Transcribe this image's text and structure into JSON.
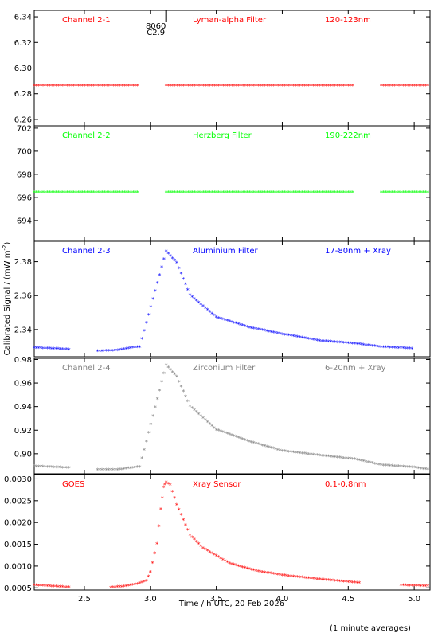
{
  "chart_data": [
    {
      "type": "scatter",
      "id": "ch21",
      "color": "#ff0000",
      "labels": [
        "Channel 2-1",
        "Lyman-alpha Filter",
        "120-123nm"
      ],
      "ylim": [
        6.255,
        6.345
      ],
      "yticks": [
        "6.26",
        "6.28",
        "6.30",
        "6.32",
        "6.34"
      ],
      "ytick_values": [
        6.26,
        6.28,
        6.3,
        6.32,
        6.34
      ],
      "series": [
        {
          "values": [
            [
              2.12,
              6.286
            ],
            [
              2.92,
              6.286
            ],
            [
              3.12,
              6.286
            ],
            [
              4.55,
              6.286
            ],
            [
              4.75,
              6.286
            ],
            [
              5.12,
              6.286
            ]
          ]
        }
      ],
      "annotations": [
        "8060",
        "C2.9"
      ],
      "event_marker_x": 3.12
    },
    {
      "type": "scatter",
      "id": "ch22",
      "color": "#00ff00",
      "labels": [
        "Channel 2-2",
        "Herzberg Filter",
        "190-222nm"
      ],
      "ylim": [
        692.2,
        702.2
      ],
      "yticks": [
        "694",
        "696",
        "698",
        "700",
        "702"
      ],
      "ytick_values": [
        694,
        696,
        698,
        700,
        702
      ],
      "series": [
        {
          "values": [
            [
              2.12,
              696.4
            ],
            [
              2.92,
              696.4
            ],
            [
              3.12,
              696.4
            ],
            [
              4.55,
              696.4
            ],
            [
              4.75,
              696.4
            ],
            [
              5.12,
              696.4
            ]
          ]
        }
      ]
    },
    {
      "type": "scatter",
      "id": "ch23",
      "color": "#0000ff",
      "labels": [
        "Channel 2-3",
        "Aluminium Filter",
        "17-80nm + Xray"
      ],
      "ylim": [
        2.324,
        2.392
      ],
      "yticks": [
        "2.34",
        "2.36",
        "2.38"
      ],
      "ytick_values": [
        2.34,
        2.36,
        2.38
      ],
      "series": [
        {
          "values": [
            [
              2.12,
              2.329
            ],
            [
              2.4,
              2.328
            ],
            [
              2.6,
              2.327
            ],
            [
              2.75,
              2.3275
            ],
            [
              2.85,
              2.329
            ],
            [
              2.92,
              2.3295
            ],
            [
              3.12,
              2.386
            ],
            [
              3.2,
              2.379
            ],
            [
              3.3,
              2.36
            ],
            [
              3.5,
              2.347
            ],
            [
              3.75,
              2.341
            ],
            [
              4.0,
              2.337
            ],
            [
              4.3,
              2.333
            ],
            [
              4.55,
              2.3315
            ],
            [
              4.75,
              2.3295
            ],
            [
              5.0,
              2.3285
            ],
            [
              5.12,
              2.328
            ]
          ]
        }
      ]
    },
    {
      "type": "scatter",
      "id": "ch24",
      "color": "#808080",
      "labels": [
        "Channel 2-4",
        "Zirconium Filter",
        "6-20nm + Xray"
      ],
      "ylim": [
        0.883,
        0.981
      ],
      "yticks": [
        "0.90",
        "0.92",
        "0.94",
        "0.96",
        "0.98"
      ],
      "ytick_values": [
        0.9,
        0.92,
        0.94,
        0.96,
        0.98
      ],
      "series": [
        {
          "values": [
            [
              2.12,
              0.889
            ],
            [
              2.4,
              0.8875
            ],
            [
              2.6,
              0.8862
            ],
            [
              2.75,
              0.886
            ],
            [
              2.85,
              0.8875
            ],
            [
              2.92,
              0.8885
            ],
            [
              3.12,
              0.975
            ],
            [
              3.2,
              0.965
            ],
            [
              3.3,
              0.94
            ],
            [
              3.5,
              0.92
            ],
            [
              3.75,
              0.91
            ],
            [
              4.0,
              0.902
            ],
            [
              4.3,
              0.898
            ],
            [
              4.55,
              0.895
            ],
            [
              4.75,
              0.89
            ],
            [
              5.0,
              0.888
            ],
            [
              5.12,
              0.886
            ]
          ]
        }
      ]
    },
    {
      "type": "scatter",
      "id": "goes",
      "color": "#ff0000",
      "labels": [
        "GOES",
        "Xray Sensor",
        "0.1-0.8nm"
      ],
      "ylim": [
        0.00045,
        0.0031
      ],
      "yticks": [
        "0.0005",
        "0.0010",
        "0.0015",
        "0.0020",
        "0.0025",
        "0.0030"
      ],
      "ytick_values": [
        0.0005,
        0.001,
        0.0015,
        0.002,
        0.0025,
        0.003
      ],
      "series": [
        {
          "values": [
            [
              2.12,
              0.00055
            ],
            [
              2.4,
              0.0005
            ],
            [
              2.7,
              0.0005
            ],
            [
              2.8,
              0.00052
            ],
            [
              2.9,
              0.00058
            ],
            [
              2.97,
              0.00065
            ],
            [
              3.0,
              0.00085
            ],
            [
              3.05,
              0.0015
            ],
            [
              3.08,
              0.0023
            ],
            [
              3.1,
              0.0028
            ],
            [
              3.12,
              0.00292
            ],
            [
              3.15,
              0.00285
            ],
            [
              3.2,
              0.0024
            ],
            [
              3.3,
              0.0017
            ],
            [
              3.4,
              0.0014
            ],
            [
              3.6,
              0.00105
            ],
            [
              3.8,
              0.00088
            ],
            [
              4.0,
              0.00078
            ],
            [
              4.3,
              0.00068
            ],
            [
              4.6,
              0.0006
            ],
            [
              4.9,
              0.00055
            ],
            [
              5.12,
              0.00053
            ]
          ]
        }
      ]
    }
  ],
  "shared": {
    "xlim": [
      2.12,
      5.12
    ],
    "xticks": [
      "2.5",
      "3.0",
      "3.5",
      "4.0",
      "4.5",
      "5.0"
    ],
    "xtick_values": [
      2.5,
      3.0,
      3.5,
      4.0,
      4.5,
      5.0
    ],
    "xlabel": "Time / h UTC, 20 Feb 2026",
    "ylabel": "Calibrated Signal / (mW m",
    "ylabel_sup": "-2",
    "ylabel_close": ")",
    "footnote": "(1 minute averages)",
    "marker": "*"
  }
}
